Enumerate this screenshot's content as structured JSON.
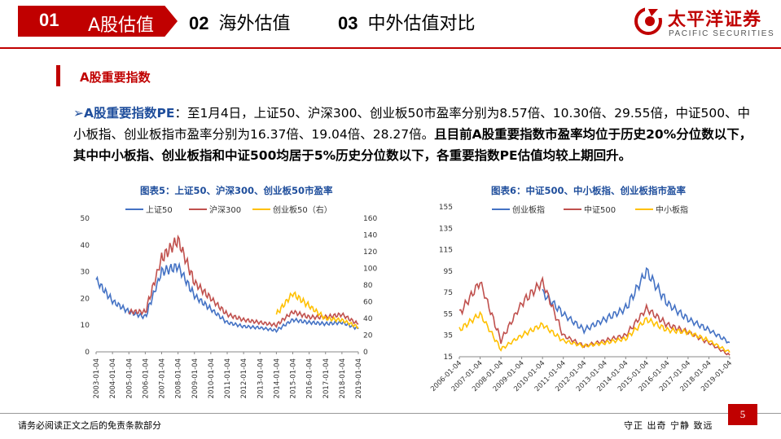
{
  "header": {
    "tabs": [
      {
        "num": "01",
        "label": "A股估值"
      },
      {
        "num": "02",
        "label": "海外估值"
      },
      {
        "num": "03",
        "label": "中外估值对比"
      }
    ],
    "logo": {
      "cn": "太平洋证券",
      "en": "PACIFIC SECURITIES"
    }
  },
  "section": {
    "title": "A股重要指数"
  },
  "paragraph": {
    "arrow": "➢",
    "keyword": "A股重要指数PE",
    "normal": "：至1月4日，上证50、沪深300、创业板50市盈率分别为8.57倍、10.30倍、29.55倍，中证500、中小板指、创业板指市盈率分别为16.37倍、19.04倍、28.27倍。",
    "bold": "且目前A股重要指数市盈率均位于历史20%分位数以下，其中中小板指、创业板指和中证500均居于5%历史分位数以下，各重要指数PE估值均较上期回升。"
  },
  "chart_data": [
    {
      "type": "line",
      "title": "图表5：上证50、沪深300、创业板50市盈率",
      "x": [
        "2003-01-04",
        "2004-01-04",
        "2005-01-04",
        "2006-01-04",
        "2007-01-04",
        "2008-01-04",
        "2009-01-04",
        "2010-01-04",
        "2011-01-04",
        "2012-01-04",
        "2013-01-04",
        "2014-01-04",
        "2015-01-04",
        "2016-01-04",
        "2017-01-04",
        "2018-01-04",
        "2019-01-04"
      ],
      "ylim": [
        0,
        50
      ],
      "yticks": [
        0,
        10,
        20,
        30,
        40,
        50
      ],
      "y2lim": [
        0,
        160
      ],
      "y2ticks": [
        0,
        20,
        40,
        60,
        80,
        100,
        120,
        140,
        160
      ],
      "legend": [
        "上证50",
        "沪深300",
        "创业板50（右）"
      ],
      "colors": [
        "#4472c4",
        "#c0504d",
        "#ffc000"
      ],
      "series": [
        {
          "name": "上证50",
          "values": [
            27,
            19,
            15,
            13,
            30,
            32,
            21,
            16,
            11,
            9.5,
            9,
            8,
            12,
            11,
            10.5,
            11,
            8.6
          ]
        },
        {
          "name": "沪深300",
          "values": [
            null,
            null,
            15,
            15,
            35,
            42,
            26,
            20,
            14,
            12,
            11,
            10,
            15,
            13,
            13,
            14,
            10.3
          ]
        },
        {
          "name": "创业板50（右）",
          "axis": "right",
          "values": [
            null,
            null,
            null,
            null,
            null,
            null,
            null,
            null,
            null,
            null,
            null,
            45,
            70,
            55,
            40,
            38,
            29.6
          ]
        }
      ]
    },
    {
      "type": "line",
      "title": "图表6：中证500、中小板指、创业板指市盈率",
      "x": [
        "2006-01-04",
        "2007-01-04",
        "2008-01-04",
        "2009-01-04",
        "2010-01-04",
        "2011-01-04",
        "2012-01-04",
        "2013-01-04",
        "2014-01-04",
        "2015-01-04",
        "2016-01-04",
        "2017-01-04",
        "2018-01-04",
        "2019-01-04"
      ],
      "ylim": [
        15,
        155
      ],
      "yticks": [
        15,
        35,
        55,
        75,
        95,
        115,
        135,
        155
      ],
      "legend": [
        "创业板指",
        "中证500",
        "中小板指"
      ],
      "colors": [
        "#4472c4",
        "#c0504d",
        "#ffc000"
      ],
      "series": [
        {
          "name": "创业板指",
          "values": [
            null,
            null,
            null,
            null,
            75,
            55,
            40,
            50,
            60,
            95,
            65,
            50,
            40,
            28.3
          ]
        },
        {
          "name": "中证500",
          "values": [
            55,
            85,
            30,
            65,
            85,
            35,
            25,
            30,
            35,
            60,
            45,
            38,
            28,
            16.4
          ]
        },
        {
          "name": "中小板指",
          "values": [
            40,
            55,
            22,
            35,
            45,
            30,
            25,
            28,
            32,
            50,
            40,
            38,
            30,
            19
          ]
        }
      ]
    }
  ],
  "footer": {
    "disclaimer": "请务必阅读正文之后的免责条款部分",
    "motto": "守正 出奇 宁静 致远",
    "page": "5"
  }
}
